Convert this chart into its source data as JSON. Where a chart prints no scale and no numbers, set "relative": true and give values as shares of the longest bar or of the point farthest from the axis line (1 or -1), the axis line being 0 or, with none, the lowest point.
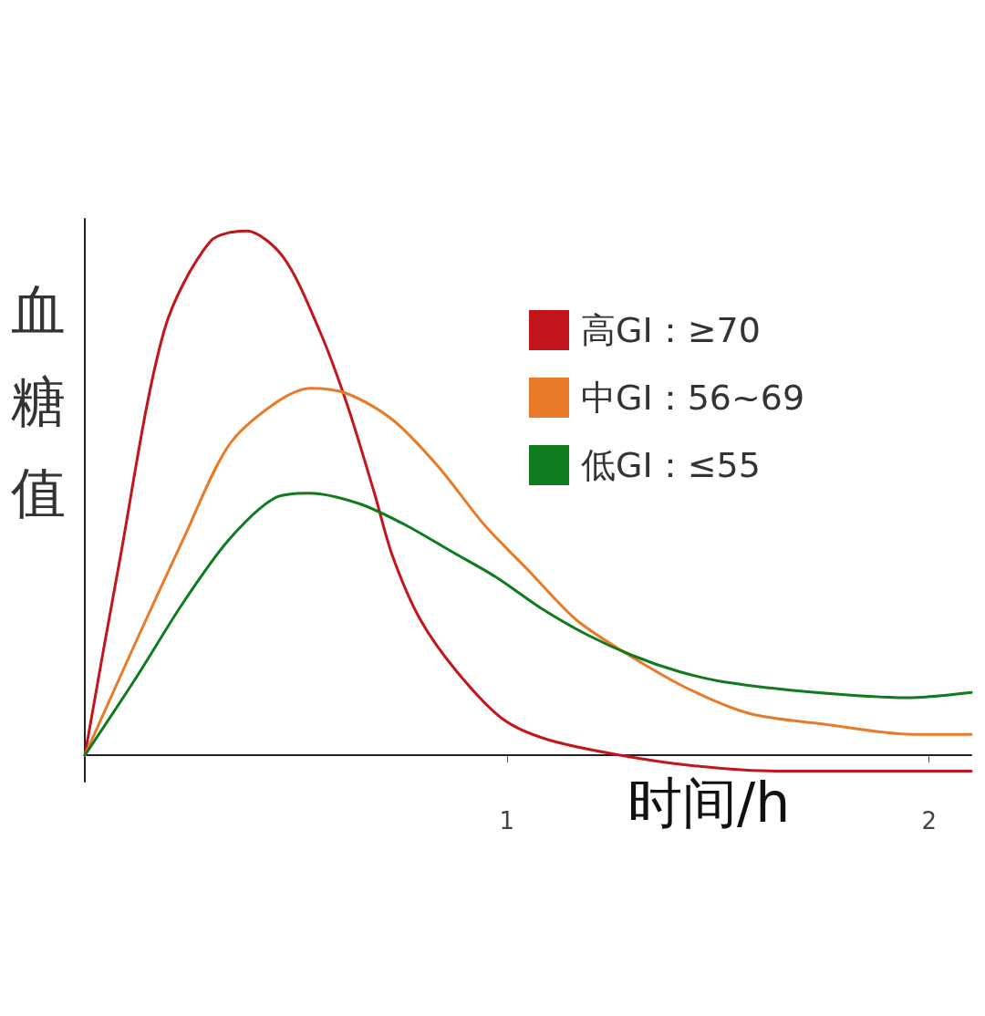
{
  "chart_data": {
    "type": "line",
    "relative": true,
    "xlabel": "时间/h",
    "ylabel": "血糖值",
    "xlim": [
      0,
      2.1
    ],
    "xticks": [
      1,
      2
    ],
    "tick_labels": "x",
    "grid": false,
    "legend": "top right",
    "marker": "none",
    "line_style": "solid",
    "series": [
      {
        "name": "高GI：≥70",
        "color": "#c4141c",
        "x": [
          0,
          0.08,
          0.188,
          0.297,
          0.383,
          0.47,
          0.556,
          0.621,
          0.686,
          0.729,
          0.794,
          0.881,
          0.989,
          1.097,
          1.271,
          1.444,
          1.639,
          2.1
        ],
        "values": [
          0,
          0.36,
          0.81,
          0.98,
          1,
          0.95,
          0.81,
          0.67,
          0.5,
          0.38,
          0.26,
          0.16,
          0.07,
          0.03,
          0,
          -0.02,
          -0.03,
          -0.03
        ]
      },
      {
        "name": "中GI：56~69",
        "color": "#e87a28",
        "x": [
          0,
          0.123,
          0.232,
          0.34,
          0.448,
          0.535,
          0.621,
          0.729,
          0.838,
          0.946,
          1.054,
          1.162,
          1.271,
          1.422,
          1.574,
          1.747,
          1.963,
          2.1
        ],
        "values": [
          0,
          0.22,
          0.41,
          0.59,
          0.67,
          0.7,
          0.69,
          0.64,
          0.55,
          0.44,
          0.35,
          0.26,
          0.2,
          0.13,
          0.08,
          0.06,
          0.04,
          0.04
        ]
      },
      {
        "name": "低GI：≤55",
        "color": "#0f7a1e",
        "x": [
          0,
          0.123,
          0.232,
          0.34,
          0.448,
          0.532,
          0.65,
          0.758,
          0.866,
          0.974,
          1.082,
          1.19,
          1.299,
          1.407,
          1.515,
          1.732,
          1.948,
          2.1
        ],
        "values": [
          0,
          0.15,
          0.29,
          0.41,
          0.49,
          0.5,
          0.48,
          0.44,
          0.39,
          0.34,
          0.28,
          0.23,
          0.19,
          0.16,
          0.14,
          0.12,
          0.11,
          0.12
        ]
      }
    ]
  }
}
